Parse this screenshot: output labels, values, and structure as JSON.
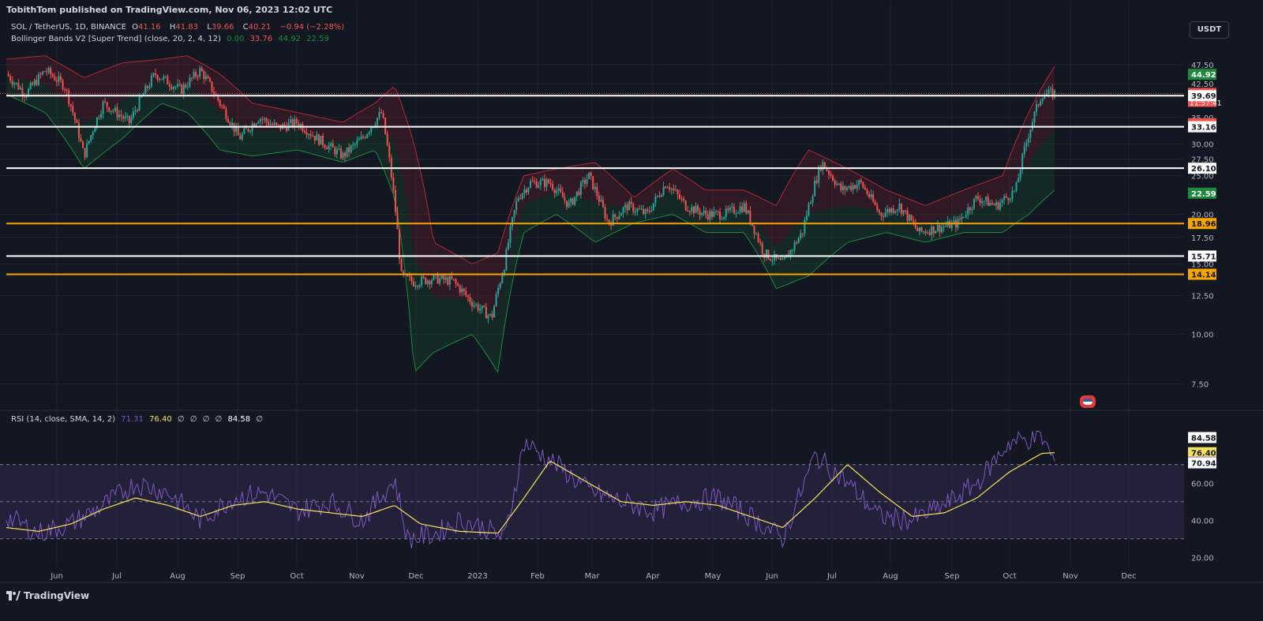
{
  "header": {
    "publisher_line": "TobithTom published on TradingView.com, Nov 06, 2023 12:02 UTC",
    "currency_button": "USDT",
    "brand": "TradingView"
  },
  "legend": {
    "symbol": "SOL / TetherUS, 1D, BINANCE",
    "o_label": "O",
    "o_value": "41.16",
    "h_label": "H",
    "h_value": "41.83",
    "l_label": "L",
    "l_value": "39.66",
    "c_label": "C",
    "c_value": "40.21",
    "change": "−0.94 (−2.28%)",
    "indicator": "Bollinger Bands V2 [Super Trend] (close, 20, 2, 4, 12)",
    "ind_values": [
      "0.00",
      "33.76",
      "44.92",
      "22.59"
    ],
    "rsi_name": "RSI (14, close, SMA, 14, 2)",
    "rsi_values": [
      "71.31",
      "76.40",
      "∅",
      "∅",
      "∅",
      "∅",
      "84.58",
      "∅"
    ]
  },
  "colors": {
    "background": "#131722",
    "up": "#26a69a",
    "down": "#ef5350",
    "support_white": "#ffffff",
    "support_orange": "#f7a600",
    "rsi_line": "#7e57c2",
    "rsi_ma": "#f7e25d",
    "band_red": "#b22833",
    "band_green": "#1b8a3a"
  },
  "chart_data": [
    {
      "type": "candlestick",
      "title": "SOL / TetherUS, 1D, BINANCE",
      "x_ticks": [
        "Jun",
        "Jul",
        "Aug",
        "Sep",
        "Oct",
        "Nov",
        "Dec",
        "2023",
        "Feb",
        "Mar",
        "Apr",
        "May",
        "Jun",
        "Jul",
        "Aug",
        "Sep",
        "Oct",
        "Nov",
        "Dec"
      ],
      "y_ticks": [
        7.5,
        10,
        12.5,
        15,
        17.5,
        20,
        25,
        27.5,
        30,
        35,
        42.5,
        47.5
      ],
      "y_scale": "log",
      "ylim": [
        6.5,
        52
      ],
      "horizontal_levels": [
        {
          "value": 39.69,
          "color": "white"
        },
        {
          "value": 33.16,
          "color": "white"
        },
        {
          "value": 26.1,
          "color": "white"
        },
        {
          "value": 18.96,
          "color": "orange"
        },
        {
          "value": 15.71,
          "color": "white"
        },
        {
          "value": 14.14,
          "color": "orange"
        }
      ],
      "price_labels": [
        {
          "value": 44.92,
          "text": "44.92",
          "bg": "#1b8a3a"
        },
        {
          "value": 40.21,
          "text": "40.21",
          "sub": "11:57:41",
          "bg": "#ef5350"
        },
        {
          "value": 39.69,
          "text": "39.69",
          "bg": "#ffffff"
        },
        {
          "value": 33.76,
          "text": "33.76",
          "bg": "#ef5350"
        },
        {
          "value": 33.16,
          "text": "33.16",
          "bg": "#ffffff"
        },
        {
          "value": 26.1,
          "text": "26.10",
          "bg": "#ffffff"
        },
        {
          "value": 22.59,
          "text": "22.59",
          "bg": "#1b8a3a"
        },
        {
          "value": 18.96,
          "text": "18.96",
          "bg": "#f7a600"
        },
        {
          "value": 15.71,
          "text": "15.71",
          "bg": "#ffffff"
        },
        {
          "value": 14.14,
          "text": "14.14",
          "bg": "#f7a600"
        }
      ],
      "close_path": [
        [
          0,
          45
        ],
        [
          0.03,
          40
        ],
        [
          0.06,
          46
        ],
        [
          0.09,
          42
        ],
        [
          0.12,
          28
        ],
        [
          0.15,
          38
        ],
        [
          0.19,
          34
        ],
        [
          0.23,
          45
        ],
        [
          0.27,
          41
        ],
        [
          0.3,
          46
        ],
        [
          0.33,
          38
        ],
        [
          0.36,
          31
        ],
        [
          0.39,
          35
        ],
        [
          0.42,
          33
        ],
        [
          0.45,
          34
        ],
        [
          0.48,
          31
        ],
        [
          0.52,
          28
        ],
        [
          0.55,
          31
        ],
        [
          0.58,
          36
        ],
        [
          0.61,
          14
        ],
        [
          0.63,
          13.5
        ],
        [
          0.66,
          13.8
        ],
        [
          0.69,
          13.6
        ],
        [
          0.72,
          12
        ],
        [
          0.75,
          11
        ],
        [
          0.77,
          15
        ],
        [
          0.79,
          22
        ],
        [
          0.81,
          24
        ],
        [
          0.84,
          24
        ],
        [
          0.87,
          21
        ],
        [
          0.9,
          25
        ],
        [
          0.93,
          19
        ],
        [
          0.96,
          21
        ],
        [
          0.99,
          20
        ],
        [
          1.02,
          24
        ],
        [
          1.05,
          21
        ],
        [
          1.08,
          20
        ],
        [
          1.11,
          20
        ],
        [
          1.14,
          21
        ],
        [
          1.17,
          16
        ],
        [
          1.2,
          15
        ],
        [
          1.23,
          18
        ],
        [
          1.26,
          27
        ],
        [
          1.29,
          23
        ],
        [
          1.32,
          24
        ],
        [
          1.35,
          20
        ],
        [
          1.38,
          21
        ],
        [
          1.41,
          18
        ],
        [
          1.44,
          18.5
        ],
        [
          1.47,
          19
        ],
        [
          1.5,
          22
        ],
        [
          1.53,
          21
        ],
        [
          1.56,
          23
        ],
        [
          1.58,
          32
        ],
        [
          1.6,
          40
        ],
        [
          1.62,
          40.2
        ]
      ],
      "bb_upper_path": [
        [
          0,
          49
        ],
        [
          0.06,
          50
        ],
        [
          0.12,
          44
        ],
        [
          0.18,
          48
        ],
        [
          0.24,
          49
        ],
        [
          0.28,
          50
        ],
        [
          0.33,
          45
        ],
        [
          0.38,
          38
        ],
        [
          0.45,
          36
        ],
        [
          0.52,
          34
        ],
        [
          0.57,
          38
        ],
        [
          0.6,
          42
        ],
        [
          0.63,
          30
        ],
        [
          0.66,
          17
        ],
        [
          0.72,
          15
        ],
        [
          0.76,
          16
        ],
        [
          0.8,
          25
        ],
        [
          0.85,
          26
        ],
        [
          0.91,
          27
        ],
        [
          0.97,
          22
        ],
        [
          1.03,
          26
        ],
        [
          1.08,
          23
        ],
        [
          1.14,
          23
        ],
        [
          1.19,
          21
        ],
        [
          1.24,
          29
        ],
        [
          1.3,
          26
        ],
        [
          1.36,
          23
        ],
        [
          1.42,
          21
        ],
        [
          1.48,
          23
        ],
        [
          1.54,
          25
        ],
        [
          1.58,
          36
        ],
        [
          1.62,
          47
        ]
      ],
      "bb_lower_path": [
        [
          0,
          40
        ],
        [
          0.06,
          36
        ],
        [
          0.12,
          26
        ],
        [
          0.18,
          31
        ],
        [
          0.24,
          38
        ],
        [
          0.28,
          36
        ],
        [
          0.33,
          29
        ],
        [
          0.38,
          28
        ],
        [
          0.45,
          29
        ],
        [
          0.52,
          27
        ],
        [
          0.57,
          29
        ],
        [
          0.6,
          22
        ],
        [
          0.63,
          8
        ],
        [
          0.66,
          9
        ],
        [
          0.72,
          10
        ],
        [
          0.76,
          8
        ],
        [
          0.8,
          18
        ],
        [
          0.85,
          20
        ],
        [
          0.91,
          17
        ],
        [
          0.97,
          19
        ],
        [
          1.03,
          20
        ],
        [
          1.08,
          18
        ],
        [
          1.14,
          18
        ],
        [
          1.19,
          13
        ],
        [
          1.24,
          14
        ],
        [
          1.3,
          17
        ],
        [
          1.36,
          18
        ],
        [
          1.42,
          17
        ],
        [
          1.48,
          18
        ],
        [
          1.54,
          18
        ],
        [
          1.58,
          20
        ],
        [
          1.62,
          23
        ]
      ]
    },
    {
      "type": "line",
      "title": "RSI (14, close, SMA, 14, 2)",
      "y_ticks": [
        20,
        40,
        60
      ],
      "ylim": [
        15,
        95
      ],
      "bands": {
        "upper": 70,
        "middle": 50,
        "lower": 30
      },
      "price_labels": [
        {
          "value": 84.58,
          "text": "84.58",
          "bg": "#ffffff"
        },
        {
          "value": 76.4,
          "text": "76.40",
          "bg": "#f7e25d"
        },
        {
          "value": 71.31,
          "text": "71.31",
          "bg": "#7e57c2"
        },
        {
          "value": 70.94,
          "text": "70.94",
          "bg": "#ffffff"
        }
      ],
      "series": [
        {
          "name": "RSI",
          "values_path": [
            [
              0,
              42
            ],
            [
              0.05,
              33
            ],
            [
              0.1,
              38
            ],
            [
              0.15,
              48
            ],
            [
              0.2,
              60
            ],
            [
              0.25,
              55
            ],
            [
              0.3,
              40
            ],
            [
              0.35,
              52
            ],
            [
              0.4,
              55
            ],
            [
              0.45,
              45
            ],
            [
              0.5,
              50
            ],
            [
              0.55,
              40
            ],
            [
              0.6,
              62
            ],
            [
              0.62,
              30
            ],
            [
              0.66,
              32
            ],
            [
              0.7,
              40
            ],
            [
              0.74,
              36
            ],
            [
              0.77,
              30
            ],
            [
              0.8,
              82
            ],
            [
              0.85,
              70
            ],
            [
              0.9,
              56
            ],
            [
              0.95,
              50
            ],
            [
              1.0,
              45
            ],
            [
              1.05,
              50
            ],
            [
              1.1,
              52
            ],
            [
              1.15,
              42
            ],
            [
              1.2,
              30
            ],
            [
              1.25,
              75
            ],
            [
              1.3,
              60
            ],
            [
              1.35,
              42
            ],
            [
              1.4,
              40
            ],
            [
              1.45,
              48
            ],
            [
              1.5,
              60
            ],
            [
              1.55,
              82
            ],
            [
              1.6,
              85
            ],
            [
              1.62,
              71.31
            ]
          ]
        },
        {
          "name": "RSI-based MA",
          "values_path": [
            [
              0,
              36
            ],
            [
              0.05,
              34
            ],
            [
              0.1,
              38
            ],
            [
              0.15,
              46
            ],
            [
              0.2,
              52
            ],
            [
              0.25,
              48
            ],
            [
              0.3,
              42
            ],
            [
              0.35,
              48
            ],
            [
              0.4,
              50
            ],
            [
              0.45,
              46
            ],
            [
              0.5,
              44
            ],
            [
              0.55,
              42
            ],
            [
              0.6,
              48
            ],
            [
              0.64,
              38
            ],
            [
              0.7,
              34
            ],
            [
              0.76,
              33
            ],
            [
              0.8,
              52
            ],
            [
              0.84,
              72
            ],
            [
              0.9,
              60
            ],
            [
              0.95,
              50
            ],
            [
              1.0,
              48
            ],
            [
              1.05,
              50
            ],
            [
              1.1,
              48
            ],
            [
              1.15,
              42
            ],
            [
              1.2,
              36
            ],
            [
              1.25,
              52
            ],
            [
              1.3,
              70
            ],
            [
              1.35,
              55
            ],
            [
              1.4,
              42
            ],
            [
              1.45,
              44
            ],
            [
              1.5,
              52
            ],
            [
              1.55,
              66
            ],
            [
              1.6,
              76
            ],
            [
              1.62,
              76.4
            ]
          ]
        }
      ]
    }
  ]
}
